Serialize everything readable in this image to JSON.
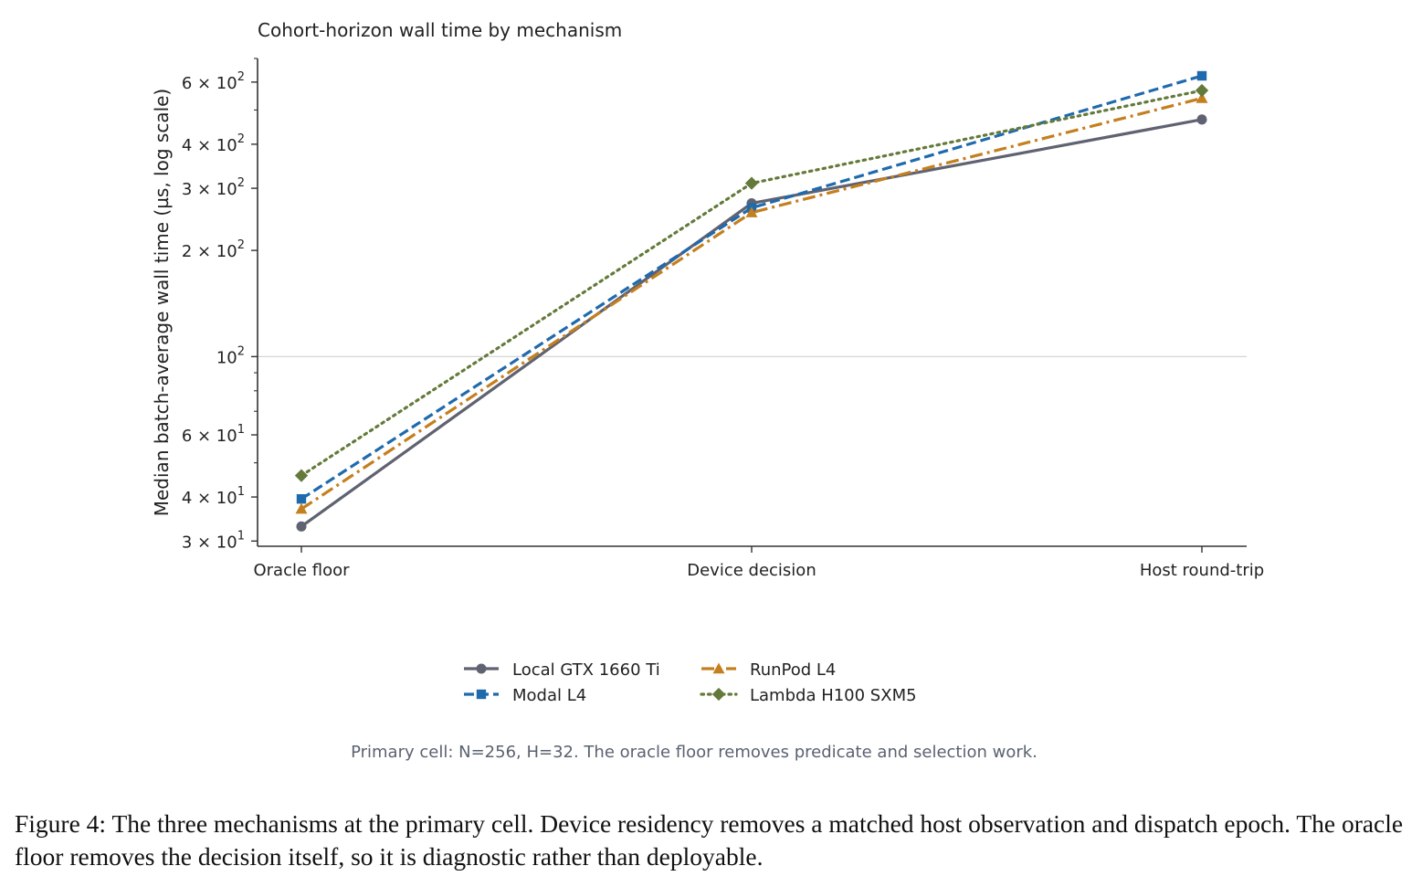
{
  "chart_data": {
    "type": "line",
    "title": "Cohort-horizon wall time by mechanism",
    "ylabel": "Median batch-average wall time (µs, log scale)",
    "xlabel": "",
    "yscale": "log",
    "ylim": [
      29,
      700
    ],
    "categories": [
      "Oracle floor",
      "Device decision",
      "Host round-trip"
    ],
    "yticks": [
      {
        "value": 30,
        "mantissa": "3 × 10",
        "exp": "1"
      },
      {
        "value": 40,
        "mantissa": "4 × 10",
        "exp": "1"
      },
      {
        "value": 60,
        "mantissa": "6 × 10",
        "exp": "1"
      },
      {
        "value": 100,
        "mantissa": "10",
        "exp": "2"
      },
      {
        "value": 200,
        "mantissa": "2 × 10",
        "exp": "2"
      },
      {
        "value": 300,
        "mantissa": "3 × 10",
        "exp": "2"
      },
      {
        "value": 400,
        "mantissa": "4 × 10",
        "exp": "2"
      },
      {
        "value": 600,
        "mantissa": "6 × 10",
        "exp": "2"
      }
    ],
    "minor_ticks": [
      50,
      70,
      80,
      90,
      500,
      700
    ],
    "gridlines": [
      100
    ],
    "legend_position": "bottom-center",
    "series": [
      {
        "name": "Local GTX 1660 Ti",
        "values": [
          33,
          272,
          470
        ],
        "color": "#5f6270",
        "marker": "circle",
        "dash": "solid"
      },
      {
        "name": "Modal L4",
        "values": [
          39.5,
          264,
          625
        ],
        "color": "#1f6aad",
        "marker": "square",
        "dash": "dashed"
      },
      {
        "name": "RunPod L4",
        "values": [
          37,
          256,
          540
        ],
        "color": "#c47f1e",
        "marker": "triangle",
        "dash": "dashdot"
      },
      {
        "name": "Lambda H100 SXM5",
        "values": [
          46,
          310,
          568
        ],
        "color": "#647a3a",
        "marker": "diamond",
        "dash": "dotted"
      }
    ]
  },
  "note": "Primary cell: N=256, H=32. The oracle floor removes predicate and selection work.",
  "caption": "Figure 4: The three mechanisms at the primary cell. Device residency removes a matched host observation and dispatch epoch. The oracle floor removes the decision itself, so it is diagnostic rather than deployable."
}
